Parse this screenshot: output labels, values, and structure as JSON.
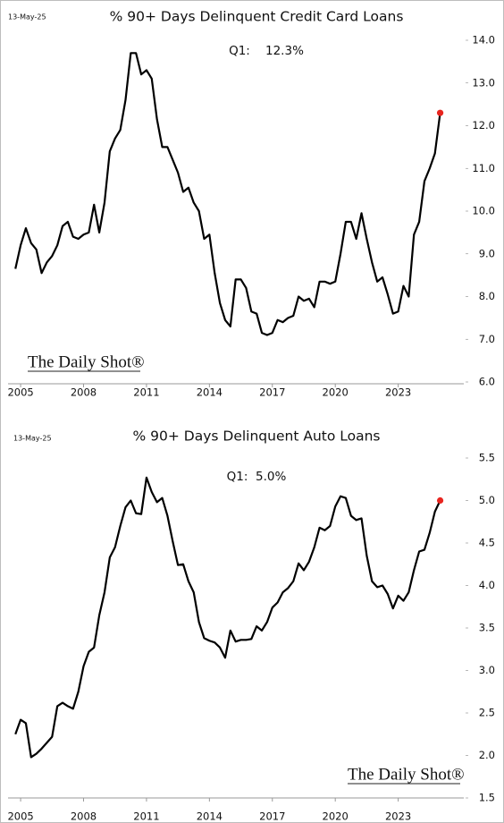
{
  "chart_data": [
    {
      "type": "line",
      "title": "% 90+ Days Delinquent Credit Card Loans",
      "date_label": "13-May-25",
      "annotation": "Q1:    12.3%",
      "source": "The Daily Shot®",
      "color": "#000000",
      "marker_color": "#e8251f",
      "x": [
        2004.75,
        2005,
        2005.25,
        2005.5,
        2005.75,
        2006,
        2006.25,
        2006.5,
        2006.75,
        2007,
        2007.25,
        2007.5,
        2007.75,
        2008,
        2008.25,
        2008.5,
        2008.75,
        2009,
        2009.25,
        2009.5,
        2009.75,
        2010,
        2010.25,
        2010.5,
        2010.75,
        2011,
        2011.25,
        2011.5,
        2011.75,
        2012,
        2012.25,
        2012.5,
        2012.75,
        2013,
        2013.25,
        2013.5,
        2013.75,
        2014,
        2014.25,
        2014.5,
        2014.75,
        2015,
        2015.25,
        2015.5,
        2015.75,
        2016,
        2016.25,
        2016.5,
        2016.75,
        2017,
        2017.25,
        2017.5,
        2017.75,
        2018,
        2018.25,
        2018.5,
        2018.75,
        2019,
        2019.25,
        2019.5,
        2019.75,
        2020,
        2020.25,
        2020.5,
        2020.75,
        2021,
        2021.25,
        2021.5,
        2021.75,
        2022,
        2022.25,
        2022.5,
        2022.75,
        2023,
        2023.25,
        2023.5,
        2023.75,
        2024,
        2024.25,
        2024.5,
        2024.75,
        2025
      ],
      "values": [
        8.65,
        9.2,
        9.6,
        9.25,
        9.1,
        8.55,
        8.8,
        8.95,
        9.2,
        9.65,
        9.75,
        9.4,
        9.35,
        9.45,
        9.5,
        10.15,
        9.5,
        10.2,
        11.4,
        11.7,
        11.9,
        12.6,
        13.7,
        13.7,
        13.2,
        13.3,
        13.1,
        12.15,
        11.5,
        11.5,
        11.2,
        10.9,
        10.45,
        10.55,
        10.2,
        10.0,
        9.35,
        9.45,
        8.55,
        7.85,
        7.45,
        7.3,
        8.4,
        8.4,
        8.2,
        7.65,
        7.6,
        7.15,
        7.1,
        7.15,
        7.45,
        7.4,
        7.5,
        7.55,
        8.0,
        7.9,
        7.95,
        7.75,
        8.35,
        8.35,
        8.3,
        8.35,
        9.0,
        9.75,
        9.75,
        9.35,
        9.95,
        9.35,
        8.8,
        8.35,
        8.45,
        8.05,
        7.6,
        7.65,
        8.25,
        8.0,
        9.45,
        9.75,
        10.7,
        11.0,
        11.35,
        12.3
      ],
      "xlim": [
        2004.4,
        2025.7
      ],
      "xticks": [
        2005,
        2008,
        2011,
        2014,
        2017,
        2020,
        2023
      ],
      "ylim": [
        6,
        14
      ],
      "yticks": [
        {
          "value": 6,
          "label": "6.0"
        },
        {
          "value": 7,
          "label": "7.0"
        },
        {
          "value": 8,
          "label": "8.0"
        },
        {
          "value": 9,
          "label": "9.0"
        },
        {
          "value": 10,
          "label": "10.0"
        },
        {
          "value": 11,
          "label": "11.0"
        },
        {
          "value": 12,
          "label": "12.0"
        },
        {
          "value": 13,
          "label": "13.0"
        },
        {
          "value": 14,
          "label": "14.0"
        }
      ]
    },
    {
      "type": "line",
      "title": "% 90+ Days Delinquent Auto Loans",
      "date_label": "13-May-25",
      "annotation": "Q1:  5.0%",
      "source": "The Daily Shot®",
      "color": "#000000",
      "marker_color": "#e8251f",
      "x": [
        2004.75,
        2005,
        2005.25,
        2005.5,
        2005.75,
        2006,
        2006.25,
        2006.5,
        2006.75,
        2007,
        2007.25,
        2007.5,
        2007.75,
        2008,
        2008.25,
        2008.5,
        2008.75,
        2009,
        2009.25,
        2009.5,
        2009.75,
        2010,
        2010.25,
        2010.5,
        2010.75,
        2011,
        2011.25,
        2011.5,
        2011.75,
        2012,
        2012.25,
        2012.5,
        2012.75,
        2013,
        2013.25,
        2013.5,
        2013.75,
        2014,
        2014.25,
        2014.5,
        2014.75,
        2015,
        2015.25,
        2015.5,
        2015.75,
        2016,
        2016.25,
        2016.5,
        2016.75,
        2017,
        2017.25,
        2017.5,
        2017.75,
        2018,
        2018.25,
        2018.5,
        2018.75,
        2019,
        2019.25,
        2019.5,
        2019.75,
        2020,
        2020.25,
        2020.5,
        2020.75,
        2021,
        2021.25,
        2021.5,
        2021.75,
        2022,
        2022.25,
        2022.5,
        2022.75,
        2023,
        2023.25,
        2023.5,
        2023.75,
        2024,
        2024.25,
        2024.5,
        2024.75,
        2025
      ],
      "values": [
        2.25,
        2.42,
        2.38,
        1.98,
        2.02,
        2.08,
        2.15,
        2.22,
        2.58,
        2.62,
        2.58,
        2.55,
        2.75,
        3.05,
        3.22,
        3.27,
        3.65,
        3.92,
        4.33,
        4.45,
        4.7,
        4.92,
        5.0,
        4.85,
        4.84,
        5.27,
        5.1,
        4.98,
        5.03,
        4.82,
        4.52,
        4.24,
        4.25,
        4.05,
        3.92,
        3.57,
        3.38,
        3.35,
        3.33,
        3.27,
        3.15,
        3.47,
        3.34,
        3.36,
        3.36,
        3.37,
        3.52,
        3.47,
        3.57,
        3.74,
        3.8,
        3.92,
        3.97,
        4.05,
        4.26,
        4.18,
        4.28,
        4.45,
        4.68,
        4.65,
        4.7,
        4.93,
        5.05,
        5.03,
        4.82,
        4.77,
        4.79,
        4.35,
        4.05,
        3.98,
        4.0,
        3.9,
        3.73,
        3.88,
        3.82,
        3.92,
        4.18,
        4.4,
        4.42,
        4.62,
        4.87,
        5.0
      ],
      "xlim": [
        2004.4,
        2025.7
      ],
      "xticks": [
        2005,
        2008,
        2011,
        2014,
        2017,
        2020,
        2023
      ],
      "ylim": [
        1.5,
        5.5
      ],
      "yticks": [
        1.5,
        {
          "value": 2,
          "label": "2.0"
        },
        2.5,
        {
          "value": 3,
          "label": "3.0"
        },
        3.5,
        {
          "value": 4,
          "label": "4.0"
        },
        4.5,
        {
          "value": 5,
          "label": "5.0"
        },
        5.5
      ]
    }
  ]
}
